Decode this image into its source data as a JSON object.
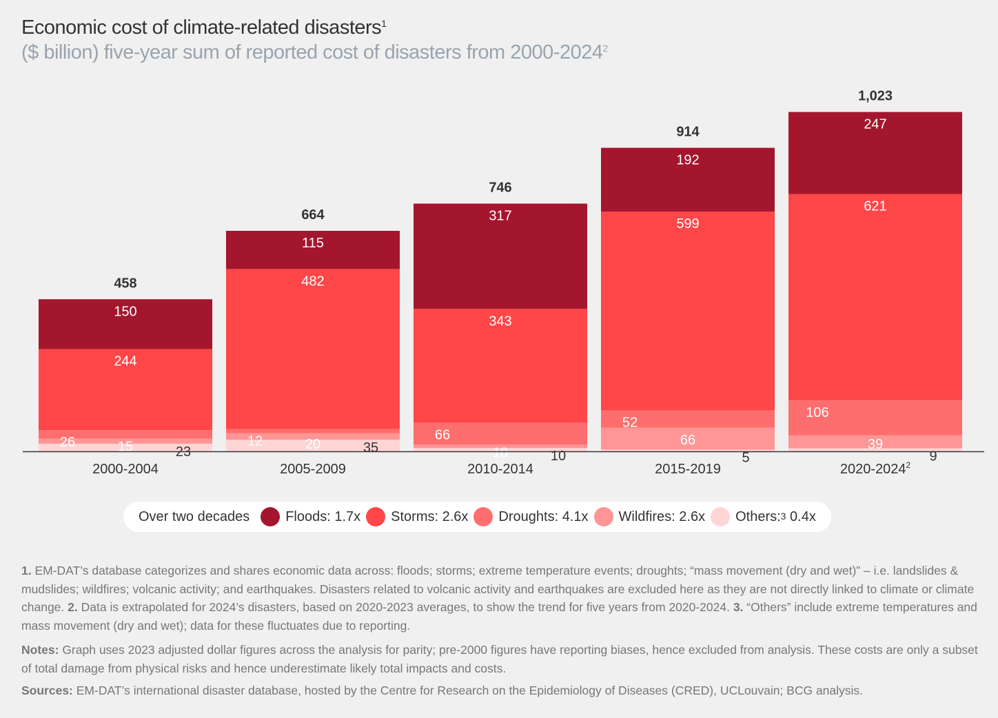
{
  "title": "Economic cost of climate-related disasters",
  "title_sup": "1",
  "subtitle": "($ billion) five-year sum of reported cost of disasters from 2000-2024",
  "subtitle_sup": "2",
  "chart_data": {
    "type": "bar",
    "stacked": true,
    "categories": [
      "2000-2004",
      "2005-2009",
      "2010-2014",
      "2015-2019",
      "2020-2024"
    ],
    "category_sups": [
      "",
      "",
      "",
      "",
      "2"
    ],
    "totals": [
      "458",
      "664",
      "746",
      "914",
      "1,023"
    ],
    "total_values": [
      458,
      664,
      746,
      914,
      1023
    ],
    "series": [
      {
        "name": "Others",
        "values": [
          23,
          35,
          10,
          5,
          9
        ],
        "color": "#ffd4d4"
      },
      {
        "name": "Wildfires",
        "values": [
          15,
          20,
          10,
          66,
          39
        ],
        "color": "#ff9595"
      },
      {
        "name": "Droughts",
        "values": [
          26,
          12,
          66,
          52,
          106
        ],
        "color": "#ff6e6e"
      },
      {
        "name": "Storms",
        "values": [
          244,
          482,
          343,
          599,
          621
        ],
        "color": "#ff4649"
      },
      {
        "name": "Floods",
        "values": [
          150,
          115,
          317,
          192,
          247
        ],
        "color": "#a3162e"
      }
    ],
    "ylim": [
      0,
      1023
    ],
    "grid": false,
    "legend_position": "bottom"
  },
  "legend": {
    "lead": "Over two decades",
    "items": [
      {
        "label": "Floods: 1.7x",
        "color": "#a3162e"
      },
      {
        "label": "Storms: 2.6x",
        "color": "#ff4649"
      },
      {
        "label": "Droughts: 4.1x",
        "color": "#ff6e6e"
      },
      {
        "label": "Wildfires: 2.6x",
        "color": "#ff9595"
      },
      {
        "label": "Others:",
        "sup": "3",
        "tail": " 0.4x",
        "color": "#ffd4d4"
      }
    ]
  },
  "footnotes": {
    "n1_num": "1.",
    "n1": " EM-DAT’s database categorizes and shares economic data across: floods; storms; extreme temperature events; droughts; “mass movement (dry and wet)” – i.e. landslides & mudslides; wildfires; volcanic activity; and earthquakes. Disasters related to volcanic activity and earthquakes are excluded here as they are not directly linked to climate or climate change. ",
    "n2_num": "2.",
    "n2": " Data is extrapolated for 2024’s disasters, based on 2020-2023 averages, to show the trend for five years from 2020-2024. ",
    "n3_num": "3.",
    "n3": " “Others” include extreme temperatures and mass movement (dry and wet); data for these fluctuates due to reporting.",
    "notes_label": "Notes:",
    "notes": " Graph uses 2023 adjusted dollar figures across the analysis for parity; pre-2000 figures have reporting biases, hence excluded from analysis. These costs are only a subset of total damage from physical risks and hence underestimate likely total impacts and costs.",
    "sources_label": "Sources:",
    "sources": " EM-DAT’s international disaster database, hosted by the Centre for Research on the Epidemiology of Diseases (CRED), UCLouvain; BCG analysis."
  }
}
